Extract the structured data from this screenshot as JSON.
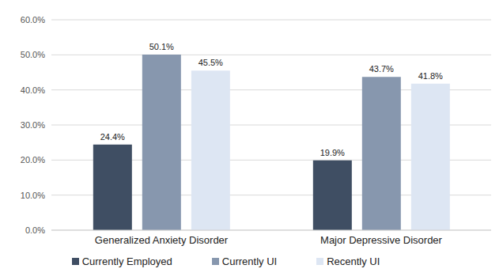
{
  "chart_data": {
    "type": "bar",
    "categories": [
      "Generalized Anxiety Disorder",
      "Major Depressive Disorder"
    ],
    "series": [
      {
        "name": "Currently Employed",
        "color": "#3f4e63",
        "values": [
          24.4,
          19.9
        ],
        "value_labels": [
          "24.4%",
          "19.9%"
        ]
      },
      {
        "name": "Currently UI",
        "color": "#8797ae",
        "values": [
          50.1,
          43.7
        ],
        "value_labels": [
          "50.1%",
          "43.7%"
        ]
      },
      {
        "name": "Recently UI",
        "color": "#dde6f3",
        "values": [
          45.5,
          41.8
        ],
        "value_labels": [
          "45.5%",
          "41.8%"
        ]
      }
    ],
    "ylim": [
      0,
      60
    ],
    "yticks": [
      {
        "value": 0,
        "label": "0.0%"
      },
      {
        "value": 10,
        "label": "10.0%"
      },
      {
        "value": 20,
        "label": "20.0%"
      },
      {
        "value": 30,
        "label": "30.0%"
      },
      {
        "value": 40,
        "label": "40.0%"
      },
      {
        "value": 50,
        "label": "50.0%"
      },
      {
        "value": 60,
        "label": "60.0%"
      }
    ],
    "grid": true,
    "legend": "bottom",
    "data_labels": true
  }
}
